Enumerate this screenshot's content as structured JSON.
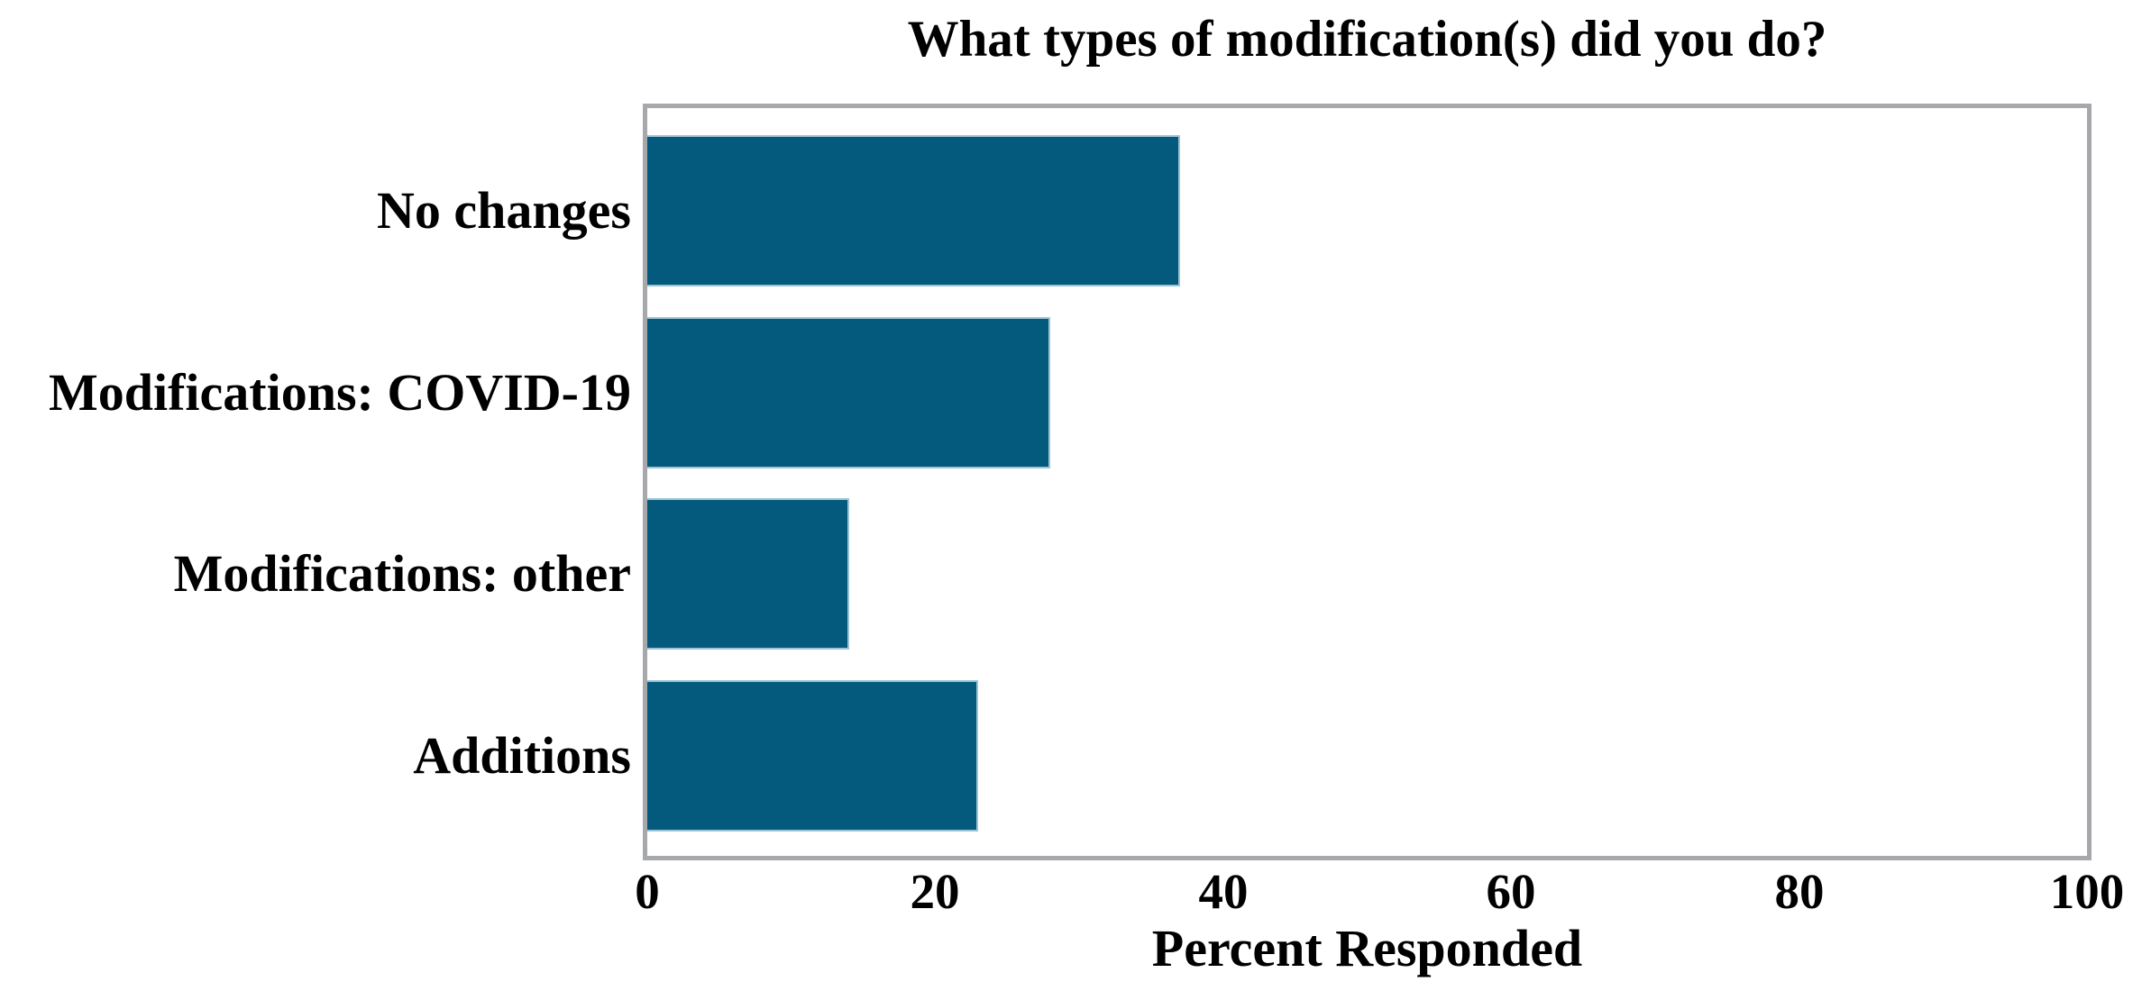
{
  "chart_data": {
    "type": "bar",
    "orientation": "horizontal",
    "title": "What types of modification(s) did you do?",
    "xlabel": "Percent Responded",
    "ylabel": "",
    "categories": [
      "No changes",
      "Modifications: COVID-19",
      "Modifications: other",
      "Additions"
    ],
    "values": [
      37,
      28,
      14,
      23
    ],
    "xlim": [
      0,
      100
    ],
    "xticks": [
      0,
      20,
      40,
      60,
      80,
      100
    ],
    "grid": false,
    "legend": null,
    "bar_color": "#045a7d",
    "bar_edge_color": "#9cc3d5",
    "plot_border_color": "#a6a8ab",
    "background_color": "#ffffff",
    "text_color": "#000000"
  }
}
